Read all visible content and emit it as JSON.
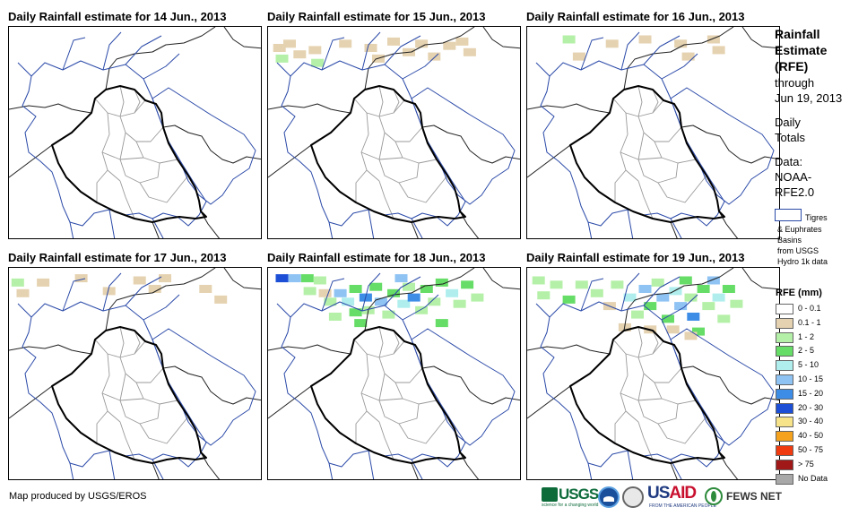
{
  "panels": [
    {
      "title": "Daily Rainfall estimate for 14 Jun., 2013",
      "rain_cells": []
    },
    {
      "title": "Daily Rainfall estimate for 15 Jun., 2013",
      "rain_cells": [
        [
          0.02,
          0.08,
          "0.1 - 1"
        ],
        [
          0.06,
          0.06,
          "0.1 - 1"
        ],
        [
          0.03,
          0.13,
          "1 - 2"
        ],
        [
          0.1,
          0.11,
          "0.1 - 1"
        ],
        [
          0.16,
          0.09,
          "0.1 - 1"
        ],
        [
          0.17,
          0.15,
          "1 - 2"
        ],
        [
          0.28,
          0.06,
          "0.1 - 1"
        ],
        [
          0.38,
          0.08,
          "0.1 - 1"
        ],
        [
          0.41,
          0.13,
          "0.1 - 1"
        ],
        [
          0.47,
          0.05,
          "0.1 - 1"
        ],
        [
          0.53,
          0.1,
          "0.1 - 1"
        ],
        [
          0.58,
          0.06,
          "0.1 - 1"
        ],
        [
          0.63,
          0.12,
          "0.1 - 1"
        ],
        [
          0.69,
          0.07,
          "0.1 - 1"
        ],
        [
          0.74,
          0.05,
          "0.1 - 1"
        ],
        [
          0.77,
          0.1,
          "0.1 - 1"
        ]
      ]
    },
    {
      "title": "Daily Rainfall estimate for 16 Jun., 2013",
      "rain_cells": [
        [
          0.14,
          0.04,
          "1 - 2"
        ],
        [
          0.18,
          0.12,
          "0.1 - 1"
        ],
        [
          0.31,
          0.06,
          "0.1 - 1"
        ],
        [
          0.44,
          0.04,
          "0.1 - 1"
        ],
        [
          0.58,
          0.06,
          "0.1 - 1"
        ],
        [
          0.61,
          0.12,
          "0.1 - 1"
        ],
        [
          0.71,
          0.04,
          "0.1 - 1"
        ],
        [
          0.73,
          0.09,
          "0.1 - 1"
        ]
      ]
    },
    {
      "title": "Daily Rainfall estimate for 17 Jun., 2013",
      "rain_cells": [
        [
          0.01,
          0.05,
          "1 - 2"
        ],
        [
          0.03,
          0.1,
          "0.1 - 1"
        ],
        [
          0.11,
          0.05,
          "0.1 - 1"
        ],
        [
          0.26,
          0.03,
          "0.1 - 1"
        ],
        [
          0.37,
          0.09,
          "0.1 - 1"
        ],
        [
          0.49,
          0.04,
          "0.1 - 1"
        ],
        [
          0.55,
          0.08,
          "0.1 - 1"
        ],
        [
          0.59,
          0.03,
          "0.1 - 1"
        ],
        [
          0.75,
          0.08,
          "0.1 - 1"
        ],
        [
          0.81,
          0.13,
          "0.1 - 1"
        ]
      ]
    },
    {
      "title": "Daily Rainfall estimate for 18 Jun., 2013",
      "rain_cells": [
        [
          0.03,
          0.03,
          "20 - 30"
        ],
        [
          0.08,
          0.03,
          "10 - 15"
        ],
        [
          0.13,
          0.03,
          "2 - 5"
        ],
        [
          0.18,
          0.04,
          "1 - 2"
        ],
        [
          0.14,
          0.09,
          "1 - 2"
        ],
        [
          0.2,
          0.1,
          "0.1 - 1"
        ],
        [
          0.22,
          0.14,
          "1 - 2"
        ],
        [
          0.26,
          0.1,
          "10 - 15"
        ],
        [
          0.29,
          0.14,
          "5 - 10"
        ],
        [
          0.32,
          0.08,
          "2 - 5"
        ],
        [
          0.32,
          0.19,
          "2 - 5"
        ],
        [
          0.36,
          0.12,
          "15 - 20"
        ],
        [
          0.37,
          0.18,
          "1 - 2"
        ],
        [
          0.4,
          0.07,
          "2 - 5"
        ],
        [
          0.42,
          0.14,
          "10 - 15"
        ],
        [
          0.45,
          0.2,
          "1 - 2"
        ],
        [
          0.47,
          0.1,
          "2 - 5"
        ],
        [
          0.51,
          0.15,
          "5 - 10"
        ],
        [
          0.53,
          0.07,
          "1 - 2"
        ],
        [
          0.55,
          0.12,
          "15 - 20"
        ],
        [
          0.58,
          0.18,
          "1 - 2"
        ],
        [
          0.6,
          0.08,
          "2 - 5"
        ],
        [
          0.63,
          0.14,
          "1 - 2"
        ],
        [
          0.66,
          0.05,
          "2 - 5"
        ],
        [
          0.7,
          0.1,
          "5 - 10"
        ],
        [
          0.73,
          0.15,
          "1 - 2"
        ],
        [
          0.76,
          0.06,
          "2 - 5"
        ],
        [
          0.8,
          0.12,
          "1 - 2"
        ],
        [
          0.24,
          0.21,
          "1 - 2"
        ],
        [
          0.34,
          0.24,
          "2 - 5"
        ],
        [
          0.66,
          0.24,
          "2 - 5"
        ],
        [
          0.5,
          0.03,
          "10 - 15"
        ]
      ]
    },
    {
      "title": "Daily Rainfall estimate for 19 Jun., 2013",
      "rain_cells": [
        [
          0.02,
          0.04,
          "1 - 2"
        ],
        [
          0.04,
          0.11,
          "1 - 2"
        ],
        [
          0.09,
          0.06,
          "1 - 2"
        ],
        [
          0.14,
          0.13,
          "2 - 5"
        ],
        [
          0.19,
          0.06,
          "1 - 2"
        ],
        [
          0.25,
          0.1,
          "1 - 2"
        ],
        [
          0.3,
          0.16,
          "0.1 - 1"
        ],
        [
          0.33,
          0.06,
          "1 - 2"
        ],
        [
          0.38,
          0.12,
          "5 - 10"
        ],
        [
          0.41,
          0.2,
          "1 - 2"
        ],
        [
          0.44,
          0.08,
          "10 - 15"
        ],
        [
          0.46,
          0.16,
          "2 - 5"
        ],
        [
          0.49,
          0.05,
          "1 - 2"
        ],
        [
          0.51,
          0.12,
          "10 - 15"
        ],
        [
          0.53,
          0.22,
          "2 - 5"
        ],
        [
          0.56,
          0.09,
          "5 - 10"
        ],
        [
          0.58,
          0.16,
          "10 - 15"
        ],
        [
          0.6,
          0.04,
          "2 - 5"
        ],
        [
          0.62,
          0.12,
          "1 - 2"
        ],
        [
          0.63,
          0.21,
          "15 - 20"
        ],
        [
          0.65,
          0.28,
          "2 - 5"
        ],
        [
          0.67,
          0.08,
          "2 - 5"
        ],
        [
          0.69,
          0.16,
          "1 - 2"
        ],
        [
          0.71,
          0.04,
          "10 - 15"
        ],
        [
          0.73,
          0.12,
          "5 - 10"
        ],
        [
          0.75,
          0.22,
          "1 - 2"
        ],
        [
          0.77,
          0.08,
          "2 - 5"
        ],
        [
          0.8,
          0.15,
          "1 - 2"
        ],
        [
          0.55,
          0.27,
          "0.1 - 1"
        ],
        [
          0.46,
          0.27,
          "0.1 - 1"
        ],
        [
          0.36,
          0.26,
          "0.1 - 1"
        ],
        [
          0.62,
          0.3,
          "0.1 - 1"
        ]
      ]
    }
  ],
  "legend": {
    "title_lines": [
      "Rainfall",
      "Estimate",
      "(RFE)"
    ],
    "through_lines": [
      "through",
      "Jun 19, 2013"
    ],
    "totals_lines": [
      "Daily",
      "Totals"
    ],
    "data_lines": [
      "Data:",
      "NOAA-",
      "RFE2.0"
    ],
    "basin_text": [
      "Tigres",
      "& Euphrates",
      "Basins",
      "from USGS",
      "Hydro 1k data"
    ],
    "basin_color": "#2b4aa8",
    "rfe_title": "RFE (mm)",
    "classes": [
      {
        "label": "0 - 0.1",
        "color": "#ffffff"
      },
      {
        "label": "0.1 - 1",
        "color": "#e5d2b0"
      },
      {
        "label": "1 - 2",
        "color": "#b5f0a8"
      },
      {
        "label": "2 - 5",
        "color": "#66dd66"
      },
      {
        "label": "5 - 10",
        "color": "#b0eeee"
      },
      {
        "label": "10 - 15",
        "color": "#8ec3f3"
      },
      {
        "label": "15 - 20",
        "color": "#3d8de6"
      },
      {
        "label": "20 - 30",
        "color": "#1c4fd6"
      },
      {
        "label": "30 - 40",
        "color": "#f7e48a"
      },
      {
        "label": "40 - 50",
        "color": "#f5a21e"
      },
      {
        "label": "50 - 75",
        "color": "#f03a10"
      },
      {
        "label": "> 75",
        "color": "#a01818"
      },
      {
        "label": "No Data",
        "color": "#a8a8a8"
      }
    ]
  },
  "footer": {
    "credit": "Map produced by USGS/EROS",
    "logos": {
      "usgs": "USGS",
      "usgs_tag": "science for a changing world",
      "usaid_us": "US",
      "usaid_aid": "AID",
      "usaid_tag": "FROM THE AMERICAN PEOPLE",
      "fews": "FEWS NET"
    }
  }
}
